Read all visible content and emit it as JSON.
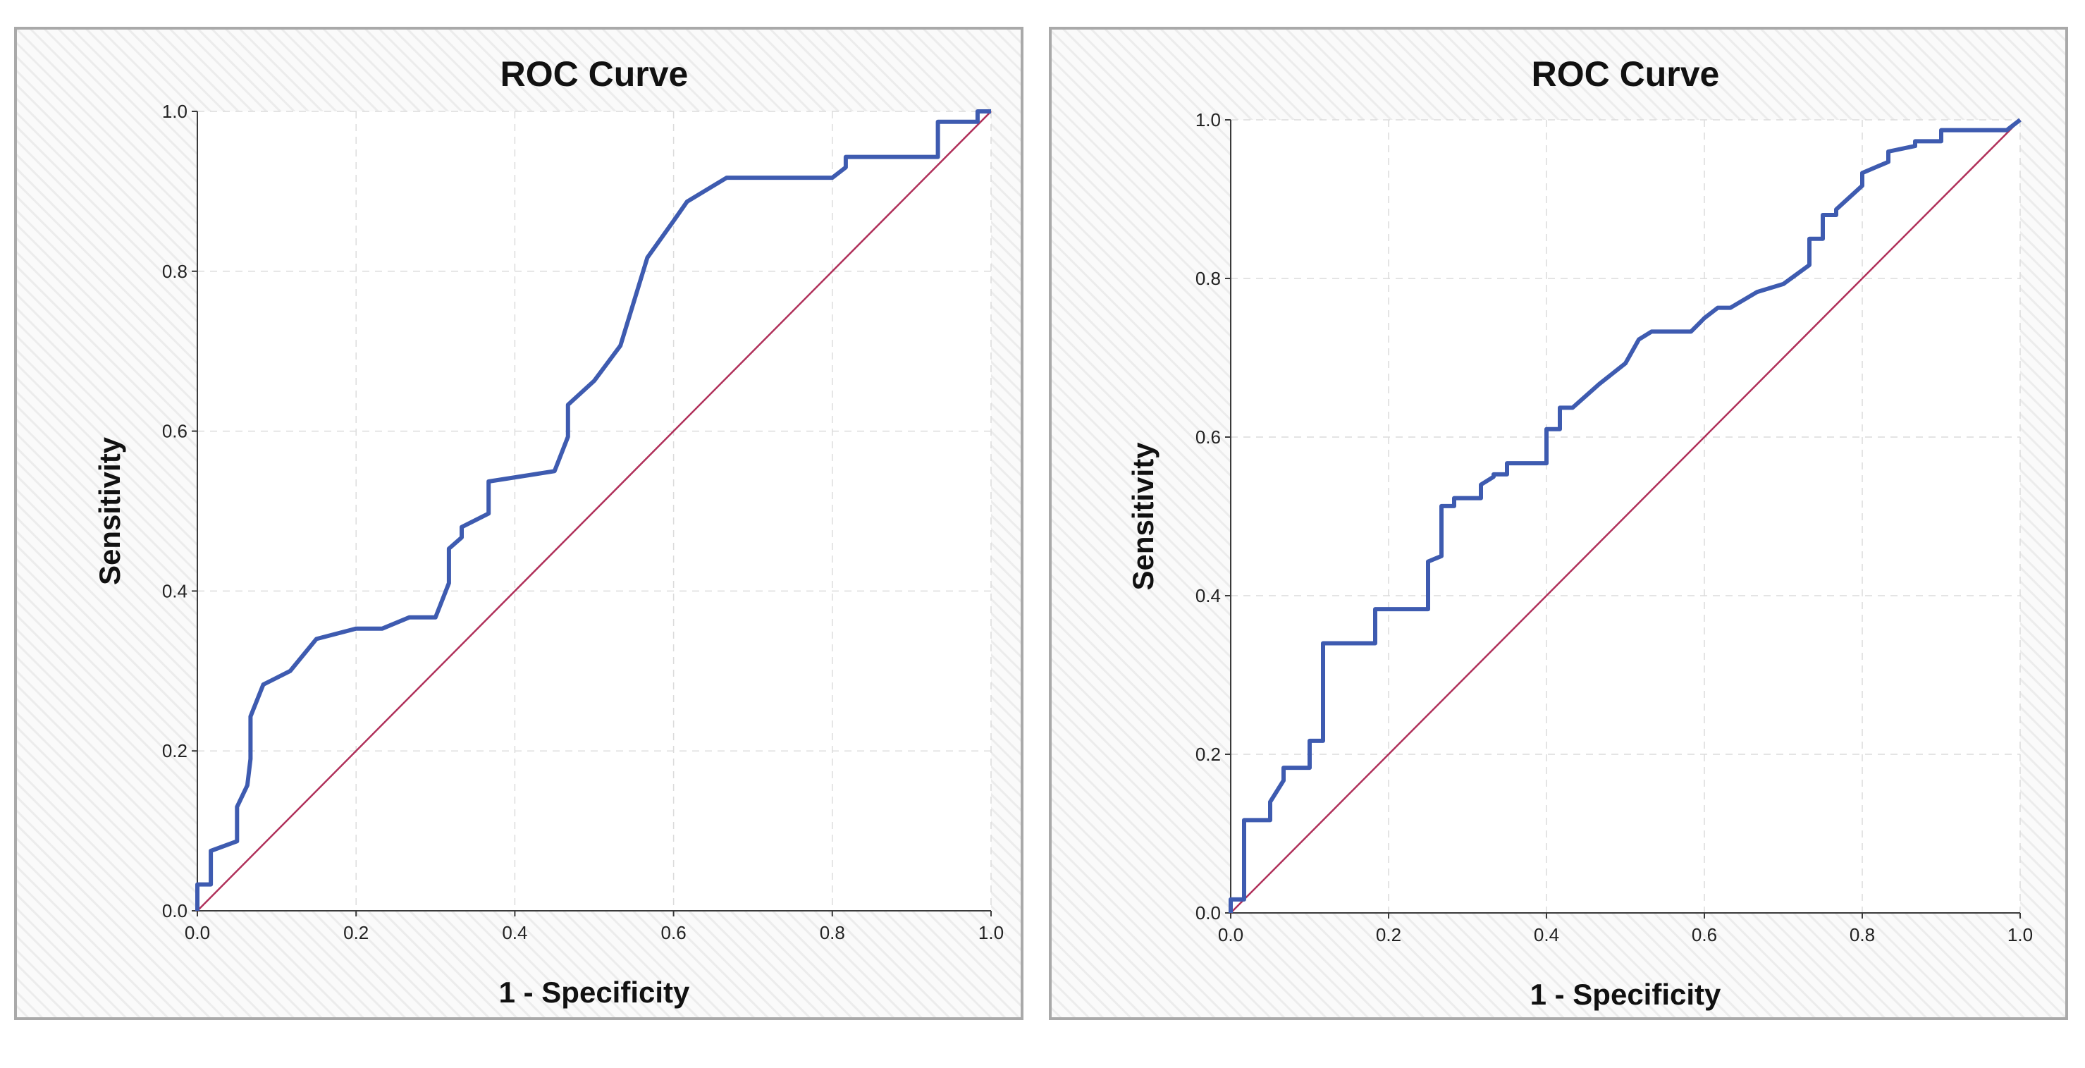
{
  "colors": {
    "roc_line": "#3e5bb0",
    "reference_line": "#b0305a",
    "panel_border": "#a9a9a9"
  },
  "chart_data": [
    {
      "type": "line",
      "title": "ROC Curve",
      "xlabel": "1 - Specificity",
      "ylabel": "Sensitivity",
      "xlim": [
        0,
        1
      ],
      "ylim": [
        0,
        1
      ],
      "x_ticks": [
        "0.0",
        "0.2",
        "0.4",
        "0.6",
        "0.8",
        "1.0"
      ],
      "y_ticks": [
        "0.0",
        "0.2",
        "0.4",
        "0.6",
        "0.8",
        "1.0"
      ],
      "grid": true,
      "reference_diagonal": true,
      "series": [
        {
          "x": [
            0,
            0,
            0.017,
            0.017,
            0.05,
            0.05,
            0.063,
            0.067,
            0.067,
            0.083,
            0.117,
            0.15,
            0.2,
            0.233,
            0.267,
            0.3,
            0.317,
            0.317,
            0.333,
            0.333,
            0.367,
            0.367,
            0.45,
            0.467,
            0.467,
            0.5,
            0.533,
            0.567,
            0.6,
            0.617,
            0.667,
            0.8,
            0.817,
            0.817,
            0.933,
            0.933,
            0.983,
            0.983,
            1.0
          ],
          "y": [
            0,
            0.033,
            0.033,
            0.075,
            0.087,
            0.13,
            0.157,
            0.19,
            0.243,
            0.283,
            0.3,
            0.34,
            0.353,
            0.353,
            0.367,
            0.367,
            0.41,
            0.453,
            0.467,
            0.48,
            0.497,
            0.537,
            0.55,
            0.593,
            0.633,
            0.663,
            0.707,
            0.817,
            0.863,
            0.887,
            0.917,
            0.917,
            0.93,
            0.943,
            0.943,
            0.987,
            0.987,
            1.0,
            1.0
          ]
        }
      ]
    },
    {
      "type": "line",
      "title": "ROC Curve",
      "xlabel": "1 - Specificity",
      "ylabel": "Sensitivity",
      "xlim": [
        0,
        1
      ],
      "ylim": [
        0,
        1
      ],
      "x_ticks": [
        "0.0",
        "0.2",
        "0.4",
        "0.6",
        "0.8",
        "1.0"
      ],
      "y_ticks": [
        "0.0",
        "0.2",
        "0.4",
        "0.6",
        "0.8",
        "1.0"
      ],
      "grid": true,
      "reference_diagonal": true,
      "series": [
        {
          "x": [
            0,
            0,
            0.017,
            0.017,
            0.05,
            0.05,
            0.067,
            0.067,
            0.1,
            0.1,
            0.117,
            0.117,
            0.183,
            0.183,
            0.25,
            0.25,
            0.267,
            0.267,
            0.283,
            0.283,
            0.317,
            0.317,
            0.333,
            0.333,
            0.35,
            0.35,
            0.4,
            0.4,
            0.417,
            0.417,
            0.433,
            0.467,
            0.467,
            0.5,
            0.5,
            0.517,
            0.517,
            0.533,
            0.583,
            0.6,
            0.6,
            0.617,
            0.633,
            0.667,
            0.667,
            0.7,
            0.733,
            0.733,
            0.75,
            0.75,
            0.767,
            0.767,
            0.8,
            0.8,
            0.833,
            0.833,
            0.867,
            0.867,
            0.9,
            0.9,
            0.983,
            1.0
          ],
          "y": [
            0,
            0.017,
            0.017,
            0.117,
            0.117,
            0.14,
            0.167,
            0.183,
            0.183,
            0.217,
            0.217,
            0.34,
            0.34,
            0.383,
            0.383,
            0.443,
            0.45,
            0.513,
            0.513,
            0.523,
            0.523,
            0.54,
            0.55,
            0.553,
            0.553,
            0.567,
            0.567,
            0.61,
            0.61,
            0.637,
            0.637,
            0.667,
            0.667,
            0.693,
            0.693,
            0.723,
            0.723,
            0.733,
            0.733,
            0.75,
            0.75,
            0.763,
            0.763,
            0.783,
            0.783,
            0.793,
            0.817,
            0.85,
            0.85,
            0.88,
            0.88,
            0.887,
            0.917,
            0.933,
            0.947,
            0.96,
            0.967,
            0.973,
            0.973,
            0.987,
            0.987,
            1.0
          ]
        }
      ]
    }
  ]
}
